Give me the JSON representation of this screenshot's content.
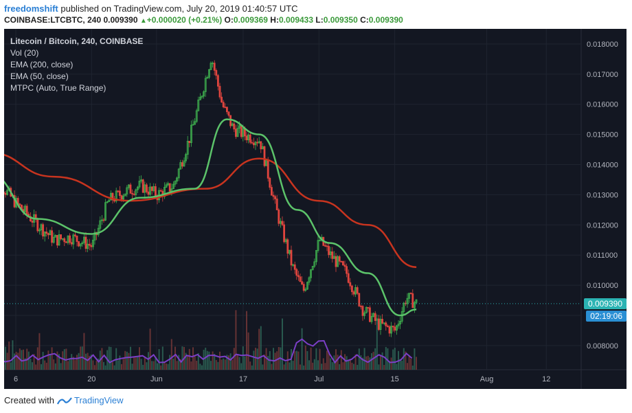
{
  "header": {
    "author": "freedomshift",
    "published_text": "published on TradingView.com, July 20, 2019 01:40:57 UTC",
    "symbol": "COINBASE:LTCBTC, 240",
    "last": "0.009390",
    "change_arrow": "▲",
    "change": "+0.000020 (+0.21%)",
    "o_label": "O:",
    "o": "0.009369",
    "h_label": "H:",
    "h": "0.009433",
    "l_label": "L:",
    "l": "0.009350",
    "c_label": "C:",
    "c": "0.009390"
  },
  "legend": {
    "title": "Litecoin / Bitcoin, 240, COINBASE",
    "lines": [
      "Vol (20)",
      "EMA (200, close)",
      "EMA (50, close)",
      "MTPC (Auto, True Range)"
    ]
  },
  "price_tag": "0.009390",
  "countdown_tag": "02:19:06",
  "footer": {
    "created_with": "Created with",
    "brand": "TradingView"
  },
  "colors": {
    "background": "#131722",
    "up": "#3fb34f",
    "down": "#e0453e",
    "ema200": "#c8341f",
    "ema50": "#5cc36a",
    "vol_ma": "#7b3fc7",
    "last_line": "#2bb3b3"
  },
  "chart_data": {
    "type": "line",
    "title": "Litecoin / Bitcoin, 240, COINBASE",
    "xlabel": "",
    "ylabel": "",
    "x_ticks": [
      "6",
      "20",
      "Jun",
      "17",
      "Jul",
      "15",
      "Aug",
      "12"
    ],
    "y_ticks": [
      "0.008000",
      "0.009000",
      "0.010000",
      "0.011000",
      "0.012000",
      "0.013000",
      "0.014000",
      "0.015000",
      "0.016000",
      "0.017000",
      "0.018000"
    ],
    "ylim": [
      0.0072,
      0.0185
    ],
    "grid": true,
    "series": [
      {
        "name": "LTCBTC",
        "x": [
          "2019-05-01",
          "2019-05-06",
          "2019-05-10",
          "2019-05-13",
          "2019-05-16",
          "2019-05-20",
          "2019-05-23",
          "2019-05-26",
          "2019-05-29",
          "2019-06-01",
          "2019-06-04",
          "2019-06-07",
          "2019-06-09",
          "2019-06-11",
          "2019-06-13",
          "2019-06-15",
          "2019-06-17",
          "2019-06-20",
          "2019-06-23",
          "2019-06-26",
          "2019-06-28",
          "2019-07-01",
          "2019-07-03",
          "2019-07-06",
          "2019-07-09",
          "2019-07-12",
          "2019-07-15",
          "2019-07-17",
          "2019-07-19"
        ],
        "values": [
          0.0138,
          0.0127,
          0.012,
          0.0115,
          0.0116,
          0.0113,
          0.0128,
          0.0131,
          0.0133,
          0.013,
          0.0133,
          0.0149,
          0.0162,
          0.0176,
          0.016,
          0.0152,
          0.015,
          0.0148,
          0.0125,
          0.0106,
          0.0098,
          0.0115,
          0.011,
          0.0104,
          0.0092,
          0.0087,
          0.0085,
          0.0096,
          0.00939
        ]
      },
      {
        "name": "EMA (200, close)",
        "x": [
          "2019-05-01",
          "2019-05-13",
          "2019-05-27",
          "2019-06-10",
          "2019-06-20",
          "2019-07-01",
          "2019-07-10",
          "2019-07-19"
        ],
        "values": [
          0.0144,
          0.0136,
          0.0128,
          0.0132,
          0.0142,
          0.0128,
          0.012,
          0.0106
        ]
      },
      {
        "name": "EMA (50, close)",
        "x": [
          "2019-05-01",
          "2019-05-10",
          "2019-05-20",
          "2019-05-29",
          "2019-06-08",
          "2019-06-14",
          "2019-06-20",
          "2019-06-27",
          "2019-07-03",
          "2019-07-10",
          "2019-07-16",
          "2019-07-19"
        ],
        "values": [
          0.0137,
          0.0122,
          0.0117,
          0.0129,
          0.0132,
          0.0155,
          0.015,
          0.0125,
          0.0114,
          0.0104,
          0.009,
          0.0092
        ]
      }
    ]
  }
}
